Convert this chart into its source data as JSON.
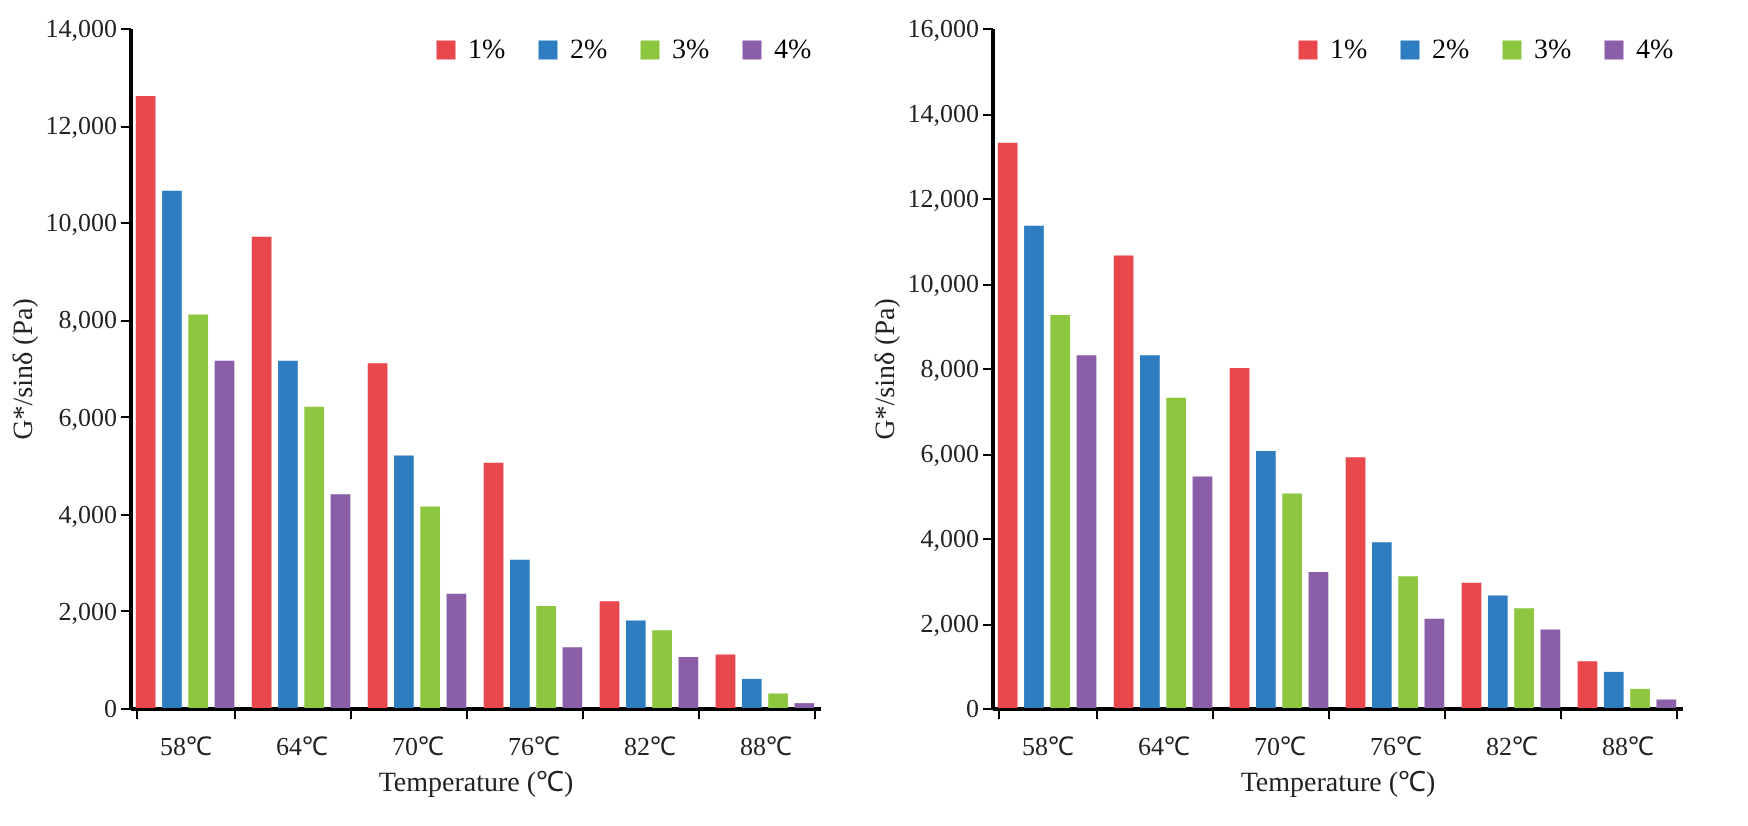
{
  "chart_data": [
    {
      "type": "bar",
      "xlabel": "Temperature (℃)",
      "ylabel": "G*/sinδ (Pa)",
      "categories": [
        "58℃",
        "64℃",
        "70℃",
        "76℃",
        "82℃",
        "88℃"
      ],
      "legend": "top right",
      "grid": false,
      "ylim": [
        0,
        14000
      ],
      "yticks": [
        {
          "value": 0,
          "label": "0"
        },
        {
          "value": 2000,
          "label": "2,000"
        },
        {
          "value": 4000,
          "label": "4,000"
        },
        {
          "value": 6000,
          "label": "6,000"
        },
        {
          "value": 8000,
          "label": "8,000"
        },
        {
          "value": 10000,
          "label": "10,000"
        },
        {
          "value": 12000,
          "label": "12,000"
        },
        {
          "value": 14000,
          "label": "14,000"
        }
      ],
      "series": [
        {
          "name": "1%",
          "color": "#e8474b",
          "values": [
            12600,
            9700,
            7100,
            5050,
            2200,
            1100
          ]
        },
        {
          "name": "2%",
          "color": "#2e7dc0",
          "values": [
            10650,
            7150,
            5200,
            3050,
            1800,
            600
          ]
        },
        {
          "name": "3%",
          "color": "#8dc63f",
          "values": [
            8100,
            6200,
            4150,
            2100,
            1600,
            300
          ]
        },
        {
          "name": "4%",
          "color": "#8b5ea8",
          "values": [
            7150,
            4400,
            2350,
            1250,
            1050,
            100
          ]
        }
      ]
    },
    {
      "type": "bar",
      "xlabel": "Temperature (℃)",
      "ylabel": "G*/sinδ (Pa)",
      "categories": [
        "58℃",
        "64℃",
        "70℃",
        "76℃",
        "82℃",
        "88℃"
      ],
      "legend": "top right",
      "grid": false,
      "ylim": [
        0,
        16000
      ],
      "yticks": [
        {
          "value": 0,
          "label": "0"
        },
        {
          "value": 2000,
          "label": "2,000"
        },
        {
          "value": 4000,
          "label": "4,000"
        },
        {
          "value": 6000,
          "label": "6,000"
        },
        {
          "value": 8000,
          "label": "8,000"
        },
        {
          "value": 10000,
          "label": "10,000"
        },
        {
          "value": 12000,
          "label": "12,000"
        },
        {
          "value": 14000,
          "label": "14,000"
        },
        {
          "value": 16000,
          "label": "16,000"
        }
      ],
      "series": [
        {
          "name": "1%",
          "color": "#e8474b",
          "values": [
            13300,
            10650,
            8000,
            5900,
            2950,
            1100
          ]
        },
        {
          "name": "2%",
          "color": "#2e7dc0",
          "values": [
            11350,
            8300,
            6050,
            3900,
            2650,
            850
          ]
        },
        {
          "name": "3%",
          "color": "#8dc63f",
          "values": [
            9250,
            7300,
            5050,
            3100,
            2350,
            450
          ]
        },
        {
          "name": "4%",
          "color": "#8b5ea8",
          "values": [
            8300,
            5450,
            3200,
            2100,
            1850,
            200
          ]
        }
      ]
    }
  ]
}
